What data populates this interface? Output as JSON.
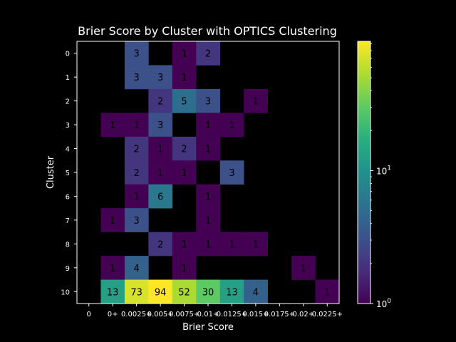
{
  "chart_data": {
    "type": "heatmap",
    "title": "Brier Score by Cluster with OPTICS Clustering",
    "xlabel": "Brier Score",
    "ylabel": "Cluster",
    "x_tick_labels": [
      "0",
      "0+",
      "0.0025+",
      "0.005+",
      "0.0075+",
      "0.01+",
      "0.0125+",
      "0.015+",
      "0.0175+",
      "0.02+",
      "0.0225+"
    ],
    "y_tick_labels": [
      "0",
      "1",
      "2",
      "3",
      "4",
      "5",
      "6",
      "7",
      "8",
      "9",
      "10"
    ],
    "color_scale": "log",
    "colormap": "viridis",
    "colorbar": {
      "vmin": 1,
      "vmax": 94,
      "tick_labels": [
        "10^0",
        "10^1"
      ]
    },
    "grid": false,
    "cells": [
      [
        null,
        null,
        3,
        null,
        1,
        2,
        null,
        null,
        null,
        null,
        null
      ],
      [
        null,
        null,
        3,
        3,
        1,
        null,
        null,
        null,
        null,
        null,
        null
      ],
      [
        null,
        null,
        null,
        2,
        5,
        3,
        null,
        1,
        null,
        null,
        null
      ],
      [
        null,
        1,
        1,
        3,
        null,
        1,
        1,
        null,
        null,
        null,
        null
      ],
      [
        null,
        null,
        2,
        1,
        2,
        1,
        null,
        null,
        null,
        null,
        null
      ],
      [
        null,
        null,
        2,
        1,
        1,
        null,
        3,
        null,
        null,
        null,
        null
      ],
      [
        null,
        null,
        1,
        6,
        null,
        1,
        null,
        null,
        null,
        null,
        null
      ],
      [
        null,
        1,
        3,
        null,
        null,
        1,
        null,
        null,
        null,
        null,
        null
      ],
      [
        null,
        null,
        null,
        2,
        1,
        1,
        1,
        1,
        null,
        null,
        null
      ],
      [
        null,
        1,
        4,
        null,
        1,
        null,
        null,
        null,
        null,
        1,
        null
      ],
      [
        null,
        13,
        73,
        94,
        52,
        30,
        13,
        4,
        null,
        null,
        1
      ]
    ]
  }
}
